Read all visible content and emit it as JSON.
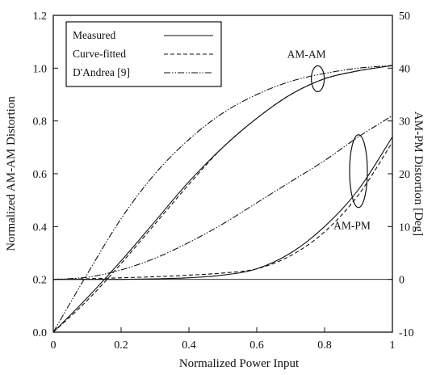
{
  "chart_data": {
    "type": "line",
    "xlabel": "Normalized Power Input",
    "ylabel": "Normalized AM-AM Distortion",
    "y2label": "AM-PM Distortion [Deg]",
    "xlim": [
      0,
      1
    ],
    "ylim": [
      0,
      1.2
    ],
    "y2lim": [
      -10,
      50
    ],
    "x_ticks": [
      0,
      0.2,
      0.4,
      0.6,
      0.8,
      1
    ],
    "x_tick_labels": [
      "0",
      "0.2",
      "0.4",
      "0.6",
      "0.8",
      "1"
    ],
    "y_ticks": [
      0,
      0.2,
      0.4,
      0.6,
      0.8,
      1.0,
      1.2
    ],
    "y_tick_labels": [
      "0.0",
      "0.2",
      "0.4",
      "0.6",
      "0.8",
      "1.0",
      "1.2"
    ],
    "y2_ticks": [
      -10,
      0,
      10,
      20,
      30,
      40,
      50
    ],
    "y2_tick_labels": [
      "-10",
      "0",
      "10",
      "20",
      "30",
      "40",
      "50"
    ],
    "grid": false,
    "legend_position": "top-left",
    "legend": [
      {
        "label": "Measured",
        "style": "solid"
      },
      {
        "label": "Curve-fitted",
        "style": "dashed"
      },
      {
        "label": "D'Andrea [9]",
        "style": "dashdotdot"
      }
    ],
    "annotations": [
      {
        "text": "AM-AM",
        "x": 0.78,
        "y": 0.96
      },
      {
        "text": "AM-PM",
        "x": 0.9,
        "y": 0.61
      }
    ],
    "series": [
      {
        "name": "Measured",
        "group": "AM-AM",
        "axis": "left",
        "style": "solid",
        "x": [
          0,
          0.1,
          0.2,
          0.3,
          0.4,
          0.5,
          0.6,
          0.7,
          0.8,
          0.9,
          1.0
        ],
        "y": [
          0.0,
          0.13,
          0.27,
          0.42,
          0.57,
          0.7,
          0.81,
          0.9,
          0.96,
          0.99,
          1.01
        ]
      },
      {
        "name": "Curve-fitted",
        "group": "AM-AM",
        "axis": "left",
        "style": "dashed",
        "x": [
          0,
          0.1,
          0.2,
          0.3,
          0.4,
          0.5,
          0.6,
          0.7,
          0.8,
          0.9,
          1.0
        ],
        "y": [
          0.0,
          0.12,
          0.26,
          0.41,
          0.56,
          0.7,
          0.81,
          0.9,
          0.96,
          0.99,
          1.01
        ]
      },
      {
        "name": "D'Andrea [9]",
        "group": "AM-AM",
        "axis": "left",
        "style": "dashdotdot",
        "x": [
          0,
          0.1,
          0.2,
          0.3,
          0.4,
          0.5,
          0.6,
          0.7,
          0.8,
          0.9,
          1.0
        ],
        "y": [
          0.0,
          0.22,
          0.43,
          0.6,
          0.73,
          0.83,
          0.9,
          0.95,
          0.98,
          1.0,
          1.01
        ]
      },
      {
        "name": "Measured",
        "group": "AM-PM",
        "axis": "right",
        "style": "solid",
        "x": [
          0,
          0.1,
          0.2,
          0.3,
          0.4,
          0.5,
          0.6,
          0.7,
          0.8,
          0.9,
          1.0
        ],
        "y": [
          0.0,
          0.0,
          0.0,
          0.1,
          0.3,
          0.8,
          2.0,
          5.0,
          10.0,
          17.0,
          27.0
        ]
      },
      {
        "name": "Curve-fitted",
        "group": "AM-PM",
        "axis": "right",
        "style": "dashed",
        "x": [
          0,
          0.1,
          0.2,
          0.3,
          0.4,
          0.5,
          0.6,
          0.7,
          0.8,
          0.9,
          1.0
        ],
        "y": [
          0.0,
          0.1,
          0.3,
          0.5,
          0.8,
          1.2,
          2.0,
          4.5,
          9.0,
          16.0,
          26.0
        ]
      },
      {
        "name": "D'Andrea [9]",
        "group": "AM-PM",
        "axis": "right",
        "style": "dashdotdot",
        "x": [
          0,
          0.1,
          0.2,
          0.3,
          0.4,
          0.5,
          0.6,
          0.7,
          0.8,
          0.9,
          1.0
        ],
        "y": [
          0.0,
          0.4,
          1.8,
          4.0,
          7.0,
          10.5,
          14.5,
          18.5,
          22.5,
          27.0,
          31.0
        ]
      }
    ]
  }
}
